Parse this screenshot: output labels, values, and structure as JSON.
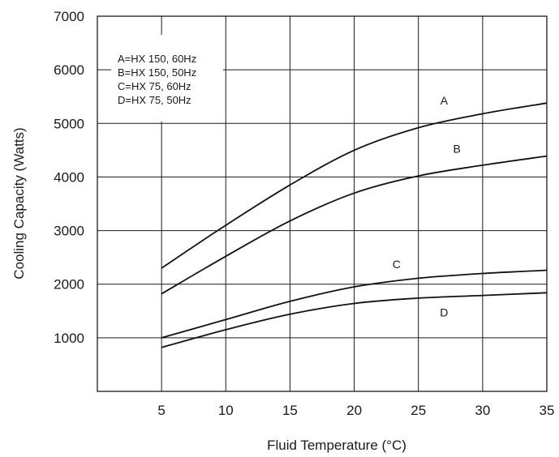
{
  "chart_data": {
    "type": "line",
    "title": "",
    "xlabel": "Fluid Temperature (°C)",
    "ylabel": "Cooling Capacity (Watts)",
    "xlim": [
      0,
      35
    ],
    "ylim": [
      0,
      7000
    ],
    "x_ticks": [
      5,
      10,
      15,
      20,
      25,
      30,
      35
    ],
    "y_ticks": [
      1000,
      2000,
      3000,
      4000,
      5000,
      6000,
      7000
    ],
    "grid": true,
    "legend": {
      "placement": "top-left",
      "entries": [
        "A=HX 150, 60Hz",
        "B=HX 150, 50Hz",
        "C=HX 75, 60Hz",
        "D=HX 75, 50Hz"
      ]
    },
    "series": [
      {
        "name": "A",
        "x": [
          5,
          10,
          15,
          20,
          25,
          30,
          35
        ],
        "values": [
          2300,
          3100,
          3850,
          4500,
          4920,
          5180,
          5380
        ],
        "label_at": [
          27,
          5350
        ]
      },
      {
        "name": "B",
        "x": [
          5,
          10,
          15,
          20,
          25,
          30,
          35
        ],
        "values": [
          1820,
          2520,
          3180,
          3700,
          4020,
          4220,
          4390
        ],
        "label_at": [
          28,
          4450
        ]
      },
      {
        "name": "C",
        "x": [
          5,
          10,
          15,
          20,
          25,
          30,
          35
        ],
        "values": [
          1000,
          1340,
          1680,
          1950,
          2110,
          2200,
          2260
        ],
        "label_at": [
          23.3,
          2300
        ]
      },
      {
        "name": "D",
        "x": [
          5,
          10,
          15,
          20,
          25,
          30,
          35
        ],
        "values": [
          820,
          1150,
          1440,
          1640,
          1740,
          1790,
          1840
        ],
        "label_at": [
          27,
          1400
        ]
      }
    ]
  }
}
